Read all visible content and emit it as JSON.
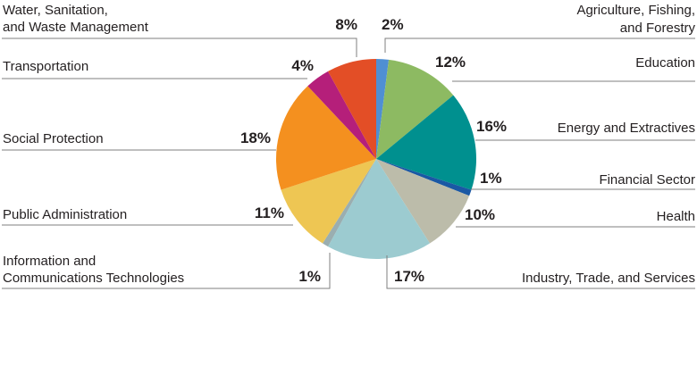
{
  "chart_data": {
    "type": "pie",
    "title": "",
    "categories": [
      "Agriculture, Fishing, and Forestry",
      "Education",
      "Energy and Extractives",
      "Financial Sector",
      "Health",
      "Industry, Trade, and Services",
      "Information and Communications Technologies",
      "Public Administration",
      "Social Protection",
      "Transportation",
      "Water, Sanitation, and Waste Management"
    ],
    "values": [
      2,
      12,
      16,
      1,
      10,
      17,
      1,
      11,
      18,
      4,
      8
    ],
    "value_labels": [
      "2%",
      "12%",
      "16%",
      "1%",
      "10%",
      "17%",
      "1%",
      "11%",
      "18%",
      "4%",
      "8%"
    ],
    "colors": [
      "#4f8fd3",
      "#8dba62",
      "#00908f",
      "#1a58a4",
      "#bcbcaa",
      "#9ccbd0",
      "#9aaeb0",
      "#eec653",
      "#f4901f",
      "#b51f7a",
      "#e34e26"
    ],
    "start_angle_deg": 0,
    "direction": "clockwise",
    "legend": "none"
  }
}
